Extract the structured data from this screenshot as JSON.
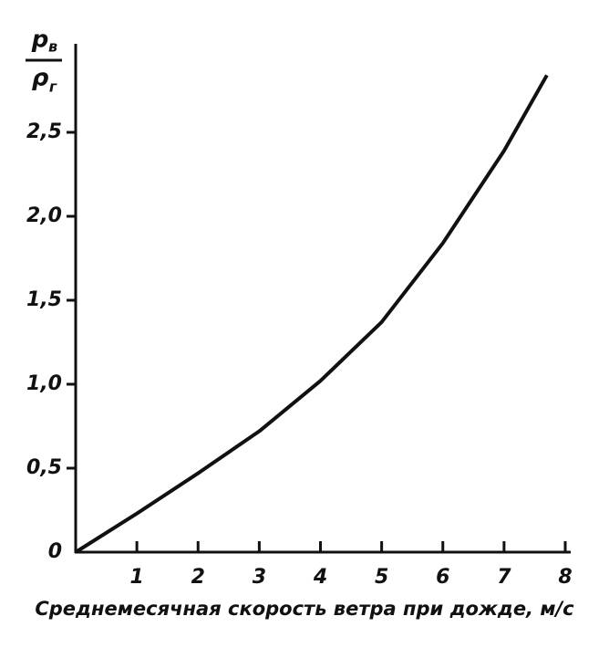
{
  "chart_data": {
    "type": "line",
    "ylabel": {
      "numerator": "p",
      "numerator_sub": "в",
      "denominator": "ρ",
      "denominator_sub": "г"
    },
    "xlabel": "Среднемесячная скорость ветра при дожде, м/с",
    "x": [
      0,
      1,
      2,
      3,
      4,
      5,
      6,
      7,
      7.7
    ],
    "series": [
      {
        "color": "#111111",
        "values": [
          0,
          0.23,
          0.47,
          0.72,
          1.02,
          1.37,
          1.84,
          2.39,
          2.84
        ]
      }
    ],
    "xlim": [
      0,
      8
    ],
    "ylim": [
      0,
      3.0
    ],
    "xticks": [
      1,
      2,
      3,
      4,
      5,
      6,
      7,
      8
    ],
    "yticks": [
      0,
      {
        "value": 0.5,
        "label": "0,5"
      },
      {
        "value": 1.0,
        "label": "1,0"
      },
      {
        "value": 1.5,
        "label": "1,5"
      },
      {
        "value": 2.0,
        "label": "2,0"
      },
      {
        "value": 2.5,
        "label": "2,5"
      }
    ],
    "grid": false
  }
}
